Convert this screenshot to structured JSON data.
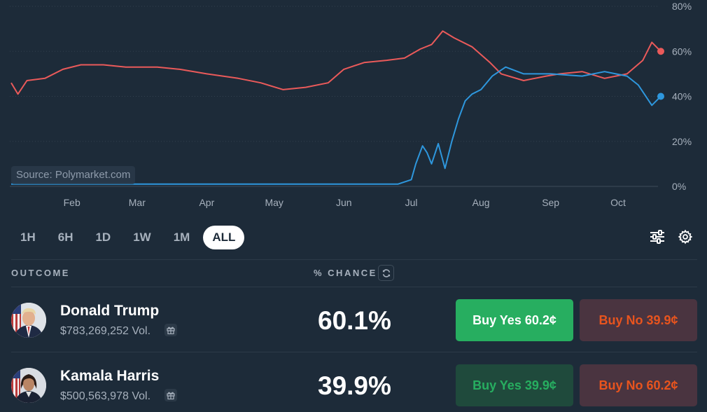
{
  "chart": {
    "source_label": "Source: Polymarket.com",
    "y_ticks": [
      "0%",
      "20%",
      "40%",
      "60%",
      "80%"
    ],
    "x_ticks": [
      "Feb",
      "Mar",
      "Apr",
      "May",
      "Jun",
      "Jul",
      "Aug",
      "Sep",
      "Oct"
    ],
    "colors": {
      "trump": "#ea5a5a",
      "harris": "#2e97dd",
      "grid": "#33414f"
    }
  },
  "chart_data": {
    "type": "line",
    "ylim": [
      0,
      80
    ],
    "y_unit": "%",
    "x_start": "2024-01-05",
    "x_end": "2024-10-20",
    "series": [
      {
        "name": "Donald Trump",
        "points": [
          [
            "2024-01-05",
            46
          ],
          [
            "2024-01-08",
            41
          ],
          [
            "2024-01-12",
            47
          ],
          [
            "2024-01-20",
            48
          ],
          [
            "2024-01-28",
            52
          ],
          [
            "2024-02-05",
            54
          ],
          [
            "2024-02-15",
            54
          ],
          [
            "2024-02-25",
            53
          ],
          [
            "2024-03-10",
            53
          ],
          [
            "2024-03-20",
            52
          ],
          [
            "2024-04-01",
            50
          ],
          [
            "2024-04-15",
            48
          ],
          [
            "2024-04-25",
            46
          ],
          [
            "2024-05-05",
            43
          ],
          [
            "2024-05-15",
            44
          ],
          [
            "2024-05-25",
            46
          ],
          [
            "2024-06-01",
            52
          ],
          [
            "2024-06-10",
            55
          ],
          [
            "2024-06-20",
            56
          ],
          [
            "2024-06-28",
            57
          ],
          [
            "2024-07-05",
            61
          ],
          [
            "2024-07-10",
            63
          ],
          [
            "2024-07-15",
            69
          ],
          [
            "2024-07-20",
            66
          ],
          [
            "2024-07-28",
            62
          ],
          [
            "2024-08-05",
            55
          ],
          [
            "2024-08-10",
            50
          ],
          [
            "2024-08-20",
            47
          ],
          [
            "2024-08-30",
            49
          ],
          [
            "2024-09-05",
            50
          ],
          [
            "2024-09-15",
            51
          ],
          [
            "2024-09-25",
            48
          ],
          [
            "2024-10-05",
            50
          ],
          [
            "2024-10-12",
            56
          ],
          [
            "2024-10-16",
            64
          ],
          [
            "2024-10-20",
            60
          ]
        ]
      },
      {
        "name": "Kamala Harris",
        "points": [
          [
            "2024-01-05",
            1
          ],
          [
            "2024-02-01",
            1
          ],
          [
            "2024-03-01",
            1
          ],
          [
            "2024-04-01",
            1
          ],
          [
            "2024-05-01",
            1
          ],
          [
            "2024-06-01",
            1
          ],
          [
            "2024-06-25",
            1
          ],
          [
            "2024-07-01",
            3
          ],
          [
            "2024-07-03",
            10
          ],
          [
            "2024-07-06",
            18
          ],
          [
            "2024-07-08",
            15
          ],
          [
            "2024-07-10",
            10
          ],
          [
            "2024-07-13",
            19
          ],
          [
            "2024-07-16",
            8
          ],
          [
            "2024-07-19",
            20
          ],
          [
            "2024-07-22",
            30
          ],
          [
            "2024-07-25",
            38
          ],
          [
            "2024-07-28",
            41
          ],
          [
            "2024-08-01",
            43
          ],
          [
            "2024-08-06",
            49
          ],
          [
            "2024-08-12",
            53
          ],
          [
            "2024-08-20",
            50
          ],
          [
            "2024-09-01",
            50
          ],
          [
            "2024-09-15",
            49
          ],
          [
            "2024-09-25",
            51
          ],
          [
            "2024-10-05",
            49
          ],
          [
            "2024-10-10",
            45
          ],
          [
            "2024-10-16",
            36
          ],
          [
            "2024-10-20",
            40
          ]
        ]
      }
    ]
  },
  "range": {
    "options": [
      "1H",
      "6H",
      "1D",
      "1W",
      "1M",
      "ALL"
    ],
    "selected": "ALL"
  },
  "table": {
    "outcome_header": "OUTCOME",
    "chance_header": "% CHANCE",
    "rows": [
      {
        "name": "Donald Trump",
        "volume": "$783,269,252 Vol.",
        "chance": "60.1%",
        "buy_yes": "Buy Yes 60.2¢",
        "buy_no": "Buy No 39.9¢"
      },
      {
        "name": "Kamala Harris",
        "volume": "$500,563,978 Vol.",
        "chance": "39.9%",
        "buy_yes": "Buy Yes 39.9¢",
        "buy_no": "Buy No 60.2¢"
      }
    ]
  }
}
